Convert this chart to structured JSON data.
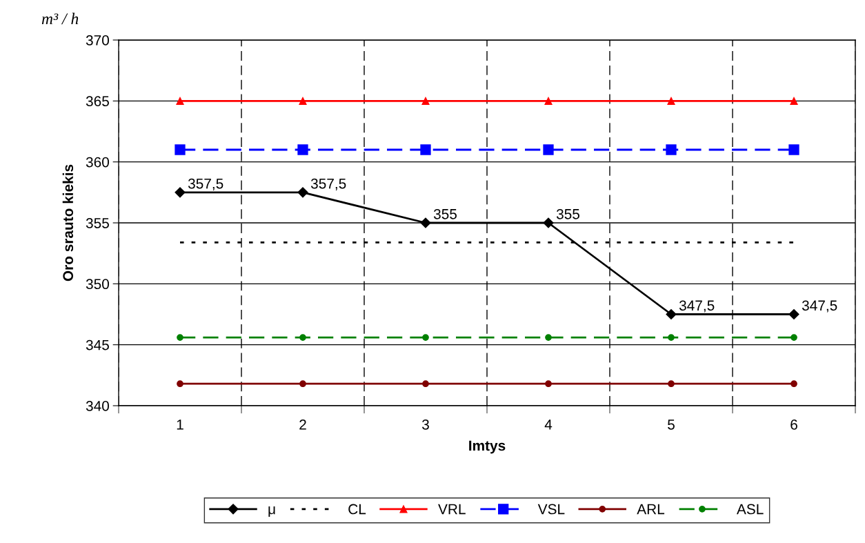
{
  "chart_data": {
    "type": "line",
    "xlabel": "Imtys",
    "ylabel": "Oro srauto kiekis",
    "annotations": [
      "m³ / h"
    ],
    "categories": [
      "1",
      "2",
      "3",
      "4",
      "5",
      "6"
    ],
    "ylim": [
      340,
      370
    ],
    "yticks": [
      340,
      345,
      350,
      355,
      360,
      365,
      370
    ],
    "grid": true,
    "legend": "bottom",
    "series": [
      {
        "name": "μ",
        "color": "#000000",
        "marker": "diamond",
        "line_style": "solid",
        "values": [
          357.5,
          357.5,
          355,
          355,
          347.5,
          347.5
        ],
        "value_labels": [
          "357,5",
          "357,5",
          "355",
          "355",
          "347,5",
          "347,5"
        ]
      },
      {
        "name": "CL",
        "color": "#000000",
        "marker": "none",
        "line_style": "dotted",
        "values": [
          353.4,
          353.4,
          353.4,
          353.4,
          353.4,
          353.4
        ]
      },
      {
        "name": "VRL",
        "color": "#ff0000",
        "marker": "triangle",
        "line_style": "solid",
        "values": [
          365,
          365,
          365,
          365,
          365,
          365
        ]
      },
      {
        "name": "VSL",
        "color": "#0000ff",
        "marker": "square",
        "line_style": "dashed",
        "values": [
          361,
          361,
          361,
          361,
          361,
          361
        ]
      },
      {
        "name": "ARL",
        "color": "#800000",
        "marker": "circle",
        "line_style": "solid",
        "values": [
          341.8,
          341.8,
          341.8,
          341.8,
          341.8,
          341.8
        ]
      },
      {
        "name": "ASL",
        "color": "#008000",
        "marker": "circle",
        "line_style": "dashed",
        "values": [
          345.6,
          345.6,
          345.6,
          345.6,
          345.6,
          345.6
        ]
      }
    ]
  }
}
